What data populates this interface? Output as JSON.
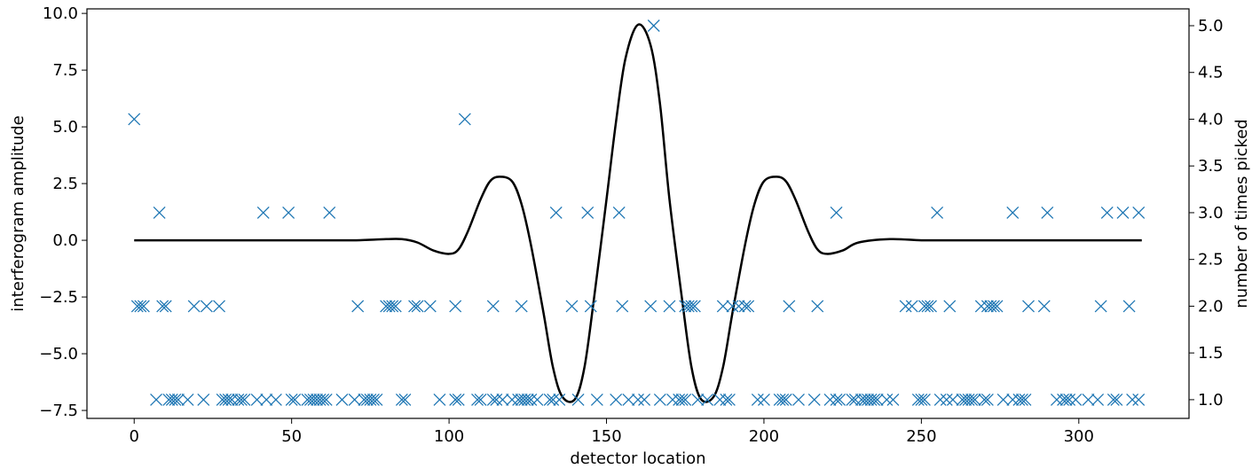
{
  "chart_data": {
    "type": "line+scatter",
    "xlabel": "detector location",
    "ylabel_left": "interferogram amplitude",
    "ylabel_right": "number of times picked",
    "xlim": [
      -15,
      335
    ],
    "ylim_left": [
      -7.85,
      10.2
    ],
    "ylim_right": [
      0.8,
      5.18
    ],
    "x_ticks": [
      0,
      50,
      100,
      150,
      200,
      250,
      300
    ],
    "y_left_ticks": [
      -7.5,
      -5.0,
      -2.5,
      0.0,
      2.5,
      5.0,
      7.5,
      10.0
    ],
    "y_right_ticks": [
      1.0,
      1.5,
      2.0,
      2.5,
      3.0,
      3.5,
      4.0,
      4.5,
      5.0
    ],
    "grid": false,
    "colors": {
      "line": "#000000",
      "markers": "#1f77b4"
    },
    "line_series": {
      "axis": "left",
      "x": [
        0,
        10,
        20,
        30,
        40,
        50,
        60,
        70,
        80,
        85,
        90,
        95,
        100,
        103,
        106,
        110,
        113,
        116,
        120,
        123,
        126,
        130,
        133,
        136,
        140,
        143,
        146,
        150,
        153,
        156,
        160,
        164,
        167,
        170,
        174,
        177,
        180,
        184,
        187,
        190,
        194,
        197,
        200,
        204,
        207,
        210,
        214,
        217,
        220,
        225,
        230,
        240,
        250,
        260,
        280,
        300,
        320
      ],
      "y": [
        0,
        0,
        0,
        0,
        0,
        0,
        0,
        0,
        0.05,
        0.05,
        -0.1,
        -0.45,
        -0.6,
        -0.4,
        0.4,
        1.8,
        2.6,
        2.8,
        2.6,
        1.6,
        -0.2,
        -3.2,
        -5.6,
        -6.9,
        -7.0,
        -5.6,
        -2.6,
        1.8,
        5.2,
        8.0,
        9.5,
        8.6,
        6.0,
        1.8,
        -2.6,
        -5.6,
        -7.0,
        -6.9,
        -5.6,
        -3.2,
        -0.2,
        1.6,
        2.6,
        2.8,
        2.6,
        1.8,
        0.4,
        -0.4,
        -0.6,
        -0.45,
        -0.1,
        0.05,
        0,
        0,
        0,
        0,
        0
      ]
    },
    "scatter_series": {
      "axis": "right",
      "marker": "x",
      "x": [
        0,
        105,
        165,
        8,
        41,
        49,
        62,
        134,
        144,
        154,
        223,
        255,
        279,
        290,
        309,
        314,
        319,
        1,
        2,
        3,
        9,
        10,
        19,
        23,
        27,
        71,
        80,
        81,
        82,
        83,
        89,
        90,
        94,
        102,
        114,
        123,
        139,
        145,
        155,
        164,
        170,
        175,
        176,
        177,
        178,
        187,
        190,
        192,
        194,
        195,
        208,
        217,
        245,
        247,
        251,
        252,
        253,
        259,
        269,
        271,
        272,
        273,
        274,
        284,
        289,
        307,
        316,
        7,
        11,
        12,
        13,
        14,
        17,
        22,
        28,
        29,
        30,
        31,
        33,
        34,
        35,
        39,
        42,
        45,
        50,
        51,
        55,
        56,
        57,
        58,
        59,
        60,
        61,
        66,
        70,
        73,
        74,
        75,
        76,
        77,
        85,
        86,
        97,
        102,
        103,
        109,
        110,
        114,
        115,
        117,
        120,
        122,
        123,
        124,
        125,
        126,
        128,
        132,
        133,
        135,
        141,
        147,
        153,
        157,
        160,
        162,
        167,
        171,
        173,
        174,
        175,
        179,
        182,
        186,
        188,
        189,
        198,
        200,
        205,
        206,
        207,
        211,
        216,
        221,
        223,
        224,
        228,
        229,
        231,
        232,
        233,
        234,
        235,
        236,
        239,
        241,
        249,
        250,
        251,
        256,
        258,
        260,
        263,
        264,
        265,
        266,
        267,
        270,
        271,
        276,
        279,
        281,
        282,
        283,
        293,
        295,
        296,
        297,
        299,
        303,
        306,
        311,
        312,
        317,
        319
      ],
      "y": [
        4,
        4,
        5,
        3,
        3,
        3,
        3,
        3,
        3,
        3,
        3,
        3,
        3,
        3,
        3,
        3,
        3,
        2,
        2,
        2,
        2,
        2,
        2,
        2,
        2,
        2,
        2,
        2,
        2,
        2,
        2,
        2,
        2,
        2,
        2,
        2,
        2,
        2,
        2,
        2,
        2,
        2,
        2,
        2,
        2,
        2,
        2,
        2,
        2,
        2,
        2,
        2,
        2,
        2,
        2,
        2,
        2,
        2,
        2,
        2,
        2,
        2,
        2,
        2,
        2,
        2,
        2,
        1,
        1,
        1,
        1,
        1,
        1,
        1,
        1,
        1,
        1,
        1,
        1,
        1,
        1,
        1,
        1,
        1,
        1,
        1,
        1,
        1,
        1,
        1,
        1,
        1,
        1,
        1,
        1,
        1,
        1,
        1,
        1,
        1,
        1,
        1,
        1,
        1,
        1,
        1,
        1,
        1,
        1,
        1,
        1,
        1,
        1,
        1,
        1,
        1,
        1,
        1,
        1,
        1,
        1,
        1,
        1,
        1,
        1,
        1,
        1,
        1,
        1,
        1,
        1,
        1,
        1,
        1,
        1,
        1,
        1,
        1,
        1,
        1,
        1,
        1,
        1,
        1,
        1,
        1,
        1,
        1,
        1,
        1,
        1,
        1,
        1,
        1,
        1,
        1,
        1,
        1,
        1,
        1,
        1,
        1,
        1,
        1,
        1,
        1,
        1,
        1,
        1,
        1,
        1,
        1,
        1,
        1,
        1,
        1,
        1,
        1,
        1,
        1,
        1,
        1,
        1,
        1,
        1
      ]
    }
  }
}
